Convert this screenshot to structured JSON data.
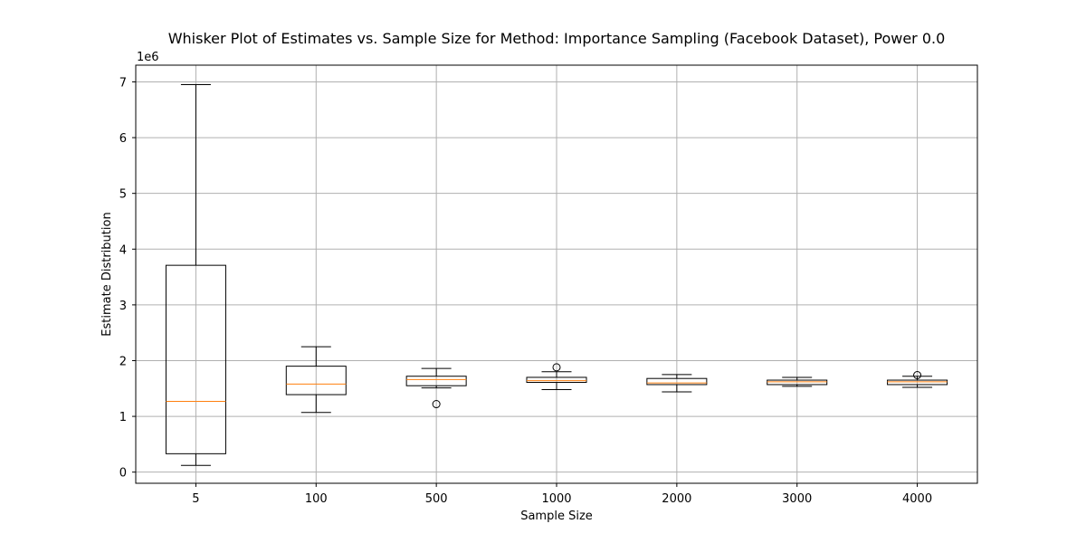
{
  "chart_data": {
    "type": "box",
    "title": "Whisker Plot of Estimates vs. Sample Size for Method: Importance Sampling (Facebook Dataset), Power 0.0",
    "xlabel": "Sample Size",
    "ylabel": "Estimate Distribution",
    "y_offset_label": "1e6",
    "ylim": [
      -200000,
      7300000
    ],
    "yticks": [
      0,
      1000000,
      2000000,
      3000000,
      4000000,
      5000000,
      6000000,
      7000000
    ],
    "ytick_labels": [
      "0",
      "1",
      "2",
      "3",
      "4",
      "5",
      "6",
      "7"
    ],
    "grid": true,
    "categories": [
      "5",
      "100",
      "500",
      "1000",
      "2000",
      "3000",
      "4000"
    ],
    "boxes": [
      {
        "whisker_low": 120000,
        "q1": 330000,
        "median": 1270000,
        "q3": 3710000,
        "whisker_high": 6950000,
        "outliers": []
      },
      {
        "whisker_low": 1070000,
        "q1": 1390000,
        "median": 1580000,
        "q3": 1900000,
        "whisker_high": 2250000,
        "outliers": []
      },
      {
        "whisker_low": 1510000,
        "q1": 1550000,
        "median": 1660000,
        "q3": 1720000,
        "whisker_high": 1860000,
        "outliers": [
          1220000
        ]
      },
      {
        "whisker_low": 1480000,
        "q1": 1610000,
        "median": 1640000,
        "q3": 1700000,
        "whisker_high": 1800000,
        "outliers": [
          1880000
        ]
      },
      {
        "whisker_low": 1440000,
        "q1": 1570000,
        "median": 1600000,
        "q3": 1680000,
        "whisker_high": 1750000,
        "outliers": []
      },
      {
        "whisker_low": 1540000,
        "q1": 1570000,
        "median": 1620000,
        "q3": 1650000,
        "whisker_high": 1700000,
        "outliers": []
      },
      {
        "whisker_low": 1520000,
        "q1": 1570000,
        "median": 1620000,
        "q3": 1650000,
        "whisker_high": 1720000,
        "outliers": [
          1740000
        ]
      }
    ],
    "colors": {
      "box": "#000000",
      "median": "#ff7f0e",
      "grid": "#b0b0b0"
    }
  }
}
